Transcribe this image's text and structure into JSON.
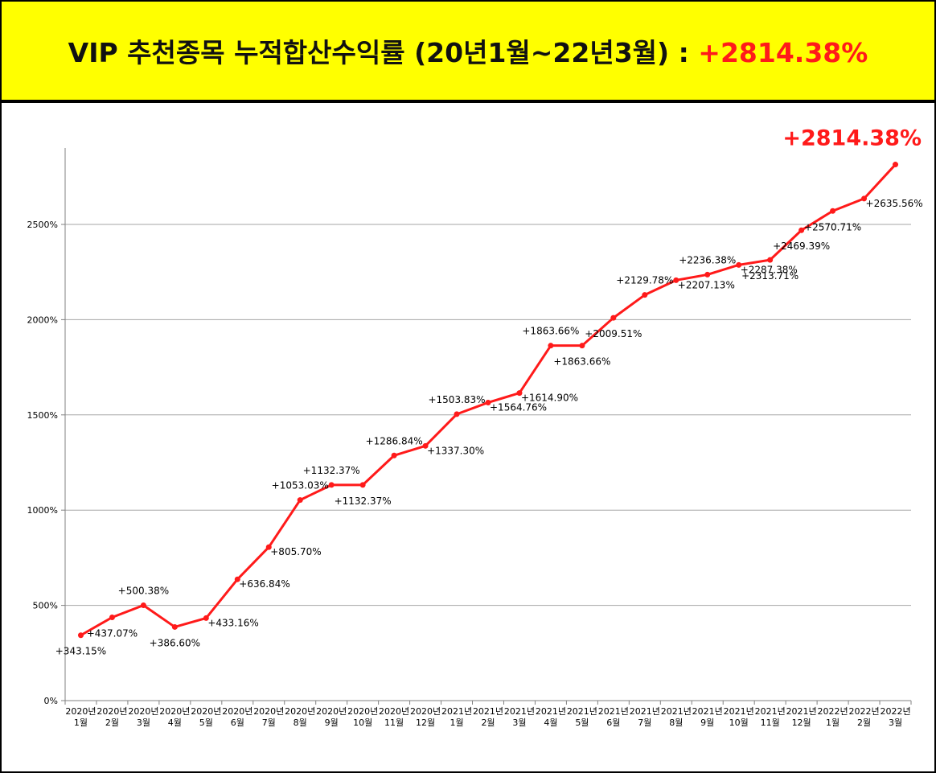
{
  "title": {
    "main": "VIP 추천종목 누적합산수익률 (20년1월~22년3월) : ",
    "highlight": "+2814.38%"
  },
  "colors": {
    "title_background": "#ffff00",
    "line": "#ff1a1a",
    "highlight": "#ff1a1a",
    "grid": "#a6a6a6"
  },
  "chart_data": {
    "type": "line",
    "title": "",
    "xlabel": "",
    "ylabel": "",
    "ylim": [
      0,
      2900
    ],
    "yticks": [
      {
        "value": 0,
        "label": "0%"
      },
      {
        "value": 500,
        "label": "500%"
      },
      {
        "value": 1000,
        "label": "1000%"
      },
      {
        "value": 1500,
        "label": "1500%"
      },
      {
        "value": 2000,
        "label": "2000%"
      },
      {
        "value": 2500,
        "label": "2500%"
      }
    ],
    "grid": true,
    "legend": "none",
    "categories": [
      {
        "year": "2020년",
        "month": "1월"
      },
      {
        "year": "2020년",
        "month": "2월"
      },
      {
        "year": "2020년",
        "month": "3월"
      },
      {
        "year": "2020년",
        "month": "4월"
      },
      {
        "year": "2020년",
        "month": "5월"
      },
      {
        "year": "2020년",
        "month": "6월"
      },
      {
        "year": "2020년",
        "month": "7월"
      },
      {
        "year": "2020년",
        "month": "8월"
      },
      {
        "year": "2020년",
        "month": "9월"
      },
      {
        "year": "2020년",
        "month": "10월"
      },
      {
        "year": "2020년",
        "month": "11월"
      },
      {
        "year": "2020년",
        "month": "12월"
      },
      {
        "year": "2021년",
        "month": "1월"
      },
      {
        "year": "2021년",
        "month": "2월"
      },
      {
        "year": "2021년",
        "month": "3월"
      },
      {
        "year": "2021년",
        "month": "4월"
      },
      {
        "year": "2021년",
        "month": "5월"
      },
      {
        "year": "2021년",
        "month": "6월"
      },
      {
        "year": "2021년",
        "month": "7월"
      },
      {
        "year": "2021년",
        "month": "8월"
      },
      {
        "year": "2021년",
        "month": "9월"
      },
      {
        "year": "2021년",
        "month": "10월"
      },
      {
        "year": "2021년",
        "month": "11월"
      },
      {
        "year": "2021년",
        "month": "12월"
      },
      {
        "year": "2022년",
        "month": "1월"
      },
      {
        "year": "2022년",
        "month": "2월"
      },
      {
        "year": "2022년",
        "month": "3월"
      }
    ],
    "series": [
      {
        "values": [
          343.15,
          437.07,
          500.38,
          386.6,
          433.16,
          636.84,
          805.7,
          1053.03,
          1132.37,
          1132.37,
          1286.84,
          1337.3,
          1503.83,
          1564.76,
          1614.9,
          1863.66,
          1863.66,
          2009.51,
          2129.78,
          2207.13,
          2236.38,
          2287.38,
          2313.71,
          2469.39,
          2570.71,
          2635.56,
          2814.38
        ],
        "labels": [
          "+343.15%",
          "+437.07%",
          "+500.38%",
          "+386.60%",
          "+433.16%",
          "+636.84%",
          "+805.70%",
          "+1053.03%",
          "+1132.37%",
          "+1132.37%",
          "+1286.84%",
          "+1337.30%",
          "+1503.83%",
          "+1564.76%",
          "+1614.90%",
          "+1863.66%",
          "+1863.66%",
          "+2009.51%",
          "+2129.78%",
          "+2207.13%",
          "+2236.38%",
          "+2287.38%",
          "+2313.71%",
          "+2469.39%",
          "+2570.71%",
          "+2635.56%",
          ""
        ],
        "label_positions": [
          "below",
          "below",
          "above",
          "below",
          "right",
          "right",
          "right",
          "above",
          "above",
          "below",
          "above",
          "right",
          "above",
          "right",
          "right",
          "above",
          "below",
          "below",
          "above",
          "right",
          "above",
          "right",
          "below",
          "below",
          "below",
          "right",
          "none"
        ]
      }
    ],
    "annotations": [
      {
        "text": "+2814.38%",
        "position": "above-last-point"
      }
    ]
  }
}
